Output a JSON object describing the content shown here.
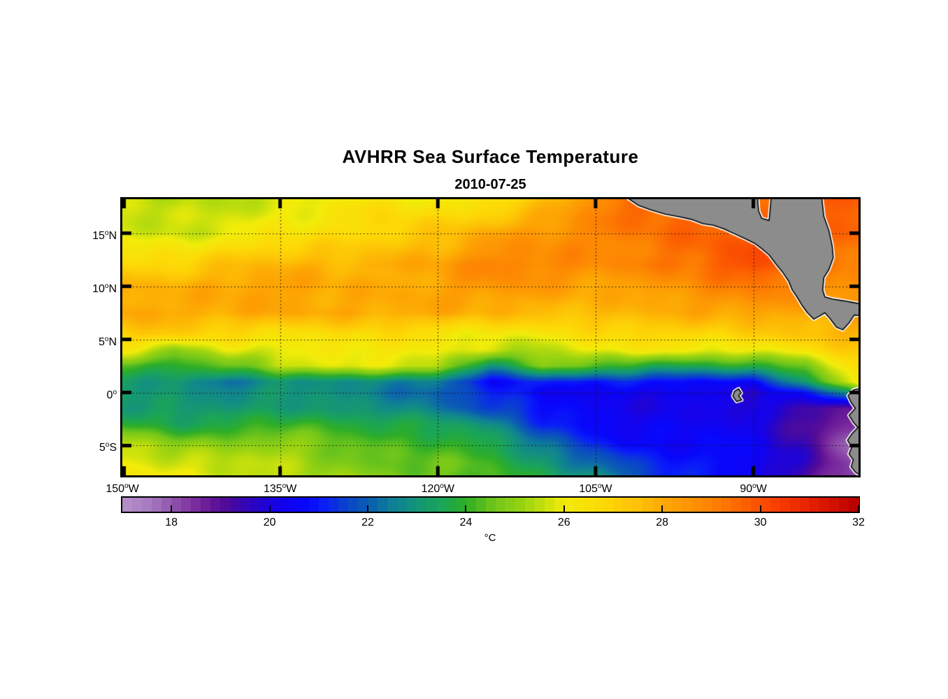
{
  "title": "AVHRR Sea Surface Temperature",
  "subtitle": "2010-07-25",
  "axes": {
    "y_ticks": [
      {
        "value": "15",
        "deg": "o",
        "hemi": "N",
        "lat": 15
      },
      {
        "value": "10",
        "deg": "o",
        "hemi": "N",
        "lat": 10
      },
      {
        "value": "5",
        "deg": "o",
        "hemi": "N",
        "lat": 5
      },
      {
        "value": "0",
        "deg": "o",
        "hemi": "",
        "lat": 0
      },
      {
        "value": "5",
        "deg": "o",
        "hemi": "S",
        "lat": -5
      }
    ],
    "x_ticks": [
      {
        "value": "150",
        "deg": "o",
        "hemi": "W",
        "lon": -150
      },
      {
        "value": "135",
        "deg": "o",
        "hemi": "W",
        "lon": -135
      },
      {
        "value": "120",
        "deg": "o",
        "hemi": "W",
        "lon": -120
      },
      {
        "value": "105",
        "deg": "o",
        "hemi": "W",
        "lon": -105
      },
      {
        "value": "90",
        "deg": "o",
        "hemi": "W",
        "lon": -90
      }
    ]
  },
  "colorbar": {
    "unit_label": "°C",
    "tick_values": [
      18,
      20,
      22,
      24,
      26,
      28,
      30,
      32
    ],
    "range": [
      17,
      32
    ],
    "segments": 75
  },
  "chart_data": {
    "type": "heatmap",
    "title": "AVHRR Sea Surface Temperature",
    "date": "2010-07-25",
    "units": "degC",
    "extent": {
      "lon_min": -150,
      "lon_max": -80,
      "lat_min": -7.8,
      "lat_max": 18.2
    },
    "grid": {
      "lons": [
        -150,
        -145,
        -140,
        -135,
        -130,
        -125,
        -120,
        -115,
        -110,
        -105,
        -100,
        -95,
        -90,
        -85,
        -80
      ],
      "lats": [
        18.2,
        15,
        12,
        10,
        7.5,
        5.5,
        4,
        2.5,
        1,
        0,
        -1.5,
        -3,
        -5,
        -6.5,
        -7.8
      ],
      "sst": [
        [
          25.4,
          25.2,
          25.6,
          26.0,
          26.0,
          26.2,
          26.0,
          26.6,
          27.5,
          28.6,
          29.6,
          29.8,
          29.8,
          29.8,
          29.6
        ],
        [
          25.8,
          25.6,
          25.9,
          26.3,
          26.6,
          27.0,
          27.4,
          28.0,
          28.5,
          29.0,
          29.3,
          29.6,
          29.8,
          29.6,
          29.5
        ],
        [
          27.0,
          27.2,
          27.4,
          27.5,
          27.8,
          28.2,
          28.2,
          28.8,
          28.8,
          29.0,
          29.2,
          29.3,
          29.9,
          29.4,
          29.3
        ],
        [
          28.1,
          28.0,
          28.0,
          28.0,
          28.0,
          28.2,
          28.2,
          28.3,
          28.3,
          28.3,
          28.5,
          28.6,
          29.0,
          29.2,
          29.0
        ],
        [
          28.2,
          28.0,
          28.0,
          28.0,
          28.0,
          28.0,
          28.0,
          27.8,
          27.6,
          27.6,
          27.8,
          28.0,
          28.2,
          28.0,
          28.2
        ],
        [
          27.0,
          27.0,
          26.8,
          26.8,
          26.5,
          26.5,
          26.3,
          26.3,
          26.3,
          26.5,
          26.8,
          27.0,
          27.2,
          27.4,
          27.6
        ],
        [
          26.0,
          24.8,
          26.0,
          26.0,
          26.2,
          26.0,
          26.0,
          25.8,
          25.5,
          25.8,
          26.0,
          26.2,
          26.3,
          26.3,
          27.0
        ],
        [
          24.0,
          23.5,
          24.5,
          25.8,
          25.8,
          25.5,
          25.5,
          23.2,
          24.8,
          24.2,
          23.5,
          23.8,
          24.0,
          24.5,
          26.8
        ],
        [
          23.2,
          23.0,
          22.2,
          23.0,
          23.0,
          22.5,
          22.3,
          20.8,
          21.3,
          20.8,
          20.8,
          20.8,
          21.0,
          23.0,
          26.3
        ],
        [
          23.2,
          23.0,
          22.8,
          23.0,
          22.8,
          22.5,
          22.0,
          21.2,
          20.5,
          20.5,
          20.3,
          20.2,
          20.0,
          21.0,
          23.5
        ],
        [
          23.3,
          23.2,
          23.0,
          23.2,
          23.0,
          23.0,
          22.5,
          21.5,
          20.8,
          20.5,
          20.3,
          20.2,
          19.8,
          19.5,
          19.0
        ],
        [
          24.2,
          23.8,
          23.5,
          23.8,
          24.0,
          24.0,
          23.5,
          22.5,
          21.2,
          20.8,
          20.5,
          20.3,
          20.0,
          19.2,
          18.5
        ],
        [
          25.8,
          25.3,
          24.8,
          25.0,
          24.6,
          24.5,
          24.2,
          23.5,
          22.2,
          21.5,
          20.8,
          20.5,
          20.2,
          19.5,
          17.8
        ],
        [
          26.1,
          25.8,
          25.4,
          25.3,
          24.9,
          24.6,
          24.5,
          24.0,
          23.0,
          22.2,
          21.2,
          20.8,
          20.5,
          19.5,
          18.0
        ],
        [
          26.3,
          26.1,
          25.7,
          25.4,
          25.1,
          24.8,
          24.5,
          24.2,
          23.5,
          23.0,
          21.5,
          20.8,
          20.5,
          19.3,
          18.0
        ]
      ]
    },
    "colormap": {
      "range": [
        17,
        32
      ],
      "stops": [
        [
          17.0,
          "#b691cb"
        ],
        [
          17.6,
          "#a678be"
        ],
        [
          18.0,
          "#9156ae"
        ],
        [
          18.6,
          "#75249b"
        ],
        [
          19.0,
          "#570d96"
        ],
        [
          19.4,
          "#3c07ad"
        ],
        [
          19.8,
          "#2404cd"
        ],
        [
          20.2,
          "#1402ea"
        ],
        [
          20.7,
          "#0806fb"
        ],
        [
          21.1,
          "#0a1ef8"
        ],
        [
          21.6,
          "#0a46c8"
        ],
        [
          22.0,
          "#0b5cb4"
        ],
        [
          22.5,
          "#0f7f96"
        ],
        [
          23.0,
          "#149578"
        ],
        [
          23.5,
          "#1ba556"
        ],
        [
          24.0,
          "#2fae27"
        ],
        [
          24.6,
          "#74c71a"
        ],
        [
          25.2,
          "#9dd410"
        ],
        [
          26.0,
          "#f2ec09"
        ],
        [
          26.8,
          "#fdd906"
        ],
        [
          27.5,
          "#fdc105"
        ],
        [
          28.2,
          "#fda103"
        ],
        [
          29.0,
          "#fd8402"
        ],
        [
          29.8,
          "#fb5a01"
        ],
        [
          30.4,
          "#f93b01"
        ],
        [
          31.0,
          "#e62200"
        ],
        [
          31.6,
          "#cc0d00"
        ],
        [
          32.0,
          "#b50000"
        ]
      ]
    },
    "gridlines": {
      "lons": [
        -135,
        -120,
        -105,
        -90
      ],
      "lats": [
        15,
        10,
        5,
        0,
        -5
      ],
      "style": "dotted"
    },
    "tick_lons": [
      -150,
      -135,
      -120,
      -105,
      -90
    ],
    "tick_lats": [
      15,
      10,
      5,
      0,
      -5
    ],
    "land": {
      "fill": "#8c8c8c",
      "outline": "#000000",
      "halo": "#ffffff",
      "polygons": [
        {
          "name": "central-america",
          "pts": [
            [
              -102.1,
              18.4
            ],
            [
              -89.6,
              18.4
            ],
            [
              -89.5,
              17.1
            ],
            [
              -89.2,
              16.4
            ],
            [
              -88.5,
              16.2
            ],
            [
              -88.3,
              18.4
            ],
            [
              -83.5,
              18.4
            ],
            [
              -83.3,
              16.6
            ],
            [
              -82.8,
              15.2
            ],
            [
              -82.5,
              13.8
            ],
            [
              -82.4,
              12.7
            ],
            [
              -82.8,
              11.6
            ],
            [
              -83.3,
              10.8
            ],
            [
              -83.4,
              9.65
            ],
            [
              -83.2,
              9.0
            ],
            [
              -82.5,
              8.8
            ],
            [
              -81.5,
              8.65
            ],
            [
              -80.65,
              8.5
            ],
            [
              -79.5,
              8.3
            ],
            [
              -79.5,
              7.2
            ],
            [
              -80.4,
              7.3
            ],
            [
              -80.9,
              6.55
            ],
            [
              -81.5,
              5.9
            ],
            [
              -82.1,
              6.15
            ],
            [
              -82.7,
              6.95
            ],
            [
              -83.2,
              7.5
            ],
            [
              -83.7,
              7.2
            ],
            [
              -84.25,
              6.9
            ],
            [
              -84.85,
              7.5
            ],
            [
              -85.4,
              8.25
            ],
            [
              -85.85,
              9.0
            ],
            [
              -86.3,
              9.65
            ],
            [
              -86.65,
              10.5
            ],
            [
              -87.2,
              11.3
            ],
            [
              -87.85,
              12.1
            ],
            [
              -88.5,
              12.95
            ],
            [
              -89.15,
              13.5
            ],
            [
              -89.8,
              14.0
            ],
            [
              -90.6,
              14.4
            ],
            [
              -91.7,
              14.9
            ],
            [
              -92.8,
              15.4
            ],
            [
              -93.8,
              15.75
            ],
            [
              -94.8,
              15.9
            ],
            [
              -95.9,
              16.3
            ],
            [
              -97.1,
              16.55
            ],
            [
              -98.4,
              16.8
            ],
            [
              -99.75,
              17.2
            ],
            [
              -100.9,
              17.6
            ]
          ]
        },
        {
          "name": "south-america",
          "pts": [
            [
              -79.5,
              0.5
            ],
            [
              -80.5,
              0.23
            ],
            [
              -81.0,
              -0.3
            ],
            [
              -80.7,
              -0.95
            ],
            [
              -80.3,
              -1.5
            ],
            [
              -80.9,
              -2.15
            ],
            [
              -80.5,
              -2.8
            ],
            [
              -80.05,
              -3.3
            ],
            [
              -80.6,
              -3.85
            ],
            [
              -81.05,
              -4.5
            ],
            [
              -80.65,
              -5.15
            ],
            [
              -80.9,
              -5.8
            ],
            [
              -80.5,
              -6.35
            ],
            [
              -80.7,
              -7.0
            ],
            [
              -80.3,
              -7.5
            ],
            [
              -79.5,
              -8.0
            ]
          ]
        },
        {
          "name": "galapagos",
          "pts": [
            [
              -91.8,
              0.1
            ],
            [
              -91.4,
              0.35
            ],
            [
              -91.15,
              -0.05
            ],
            [
              -91.4,
              -0.3
            ],
            [
              -91.1,
              -0.7
            ],
            [
              -91.6,
              -0.85
            ],
            [
              -91.95,
              -0.35
            ]
          ]
        }
      ]
    },
    "render": {
      "noise_amp": 0.33,
      "blob_amp": 0.26
    }
  }
}
